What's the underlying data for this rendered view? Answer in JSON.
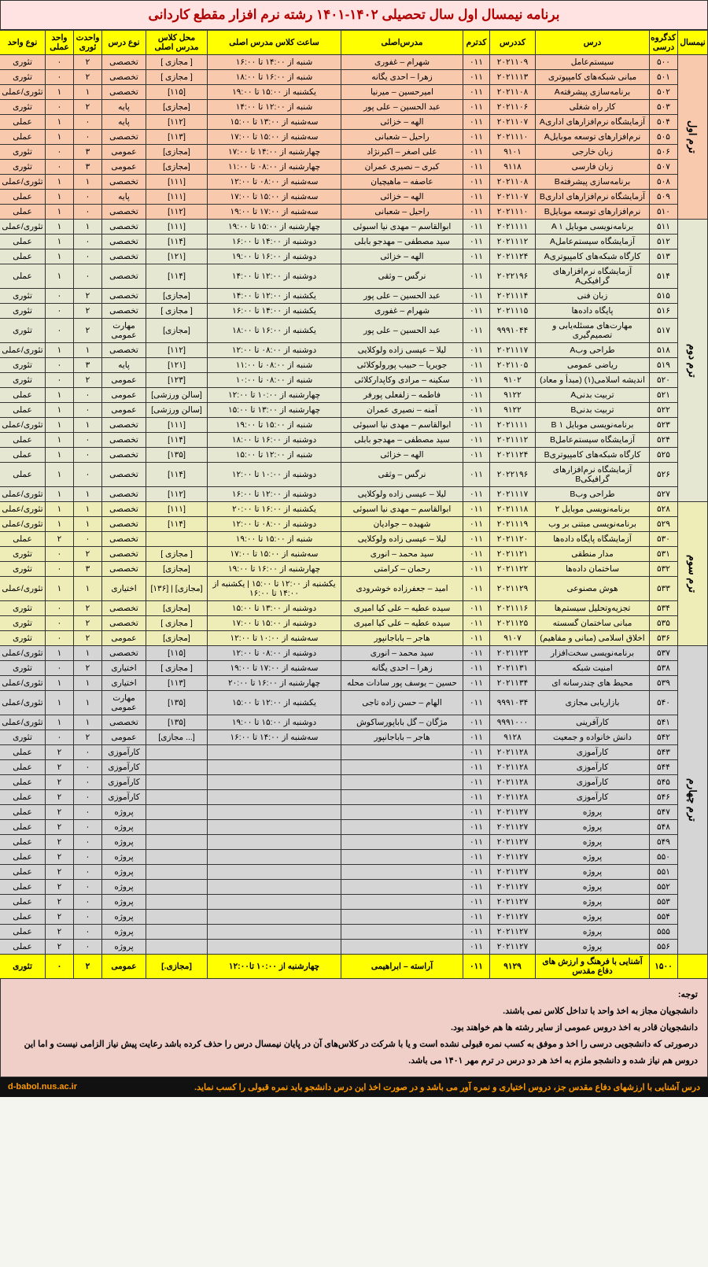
{
  "title": "برنامه نیمسال اول سال تحصیلی ۱۴۰۲-۱۴۰۱  رشته نرم افزار  مقطع کاردانی",
  "headers": {
    "term": "نیمسال",
    "group": "کدگروه درسی",
    "course": "درس",
    "code": "کددرس",
    "codetrm": "کدترم",
    "teacher": "مدرس‌اصلی",
    "time": "ساعت کلاس مدرس اصلی",
    "room": "محل کلاس مدرس اصلی",
    "type": "نوع درس",
    "theory": "واحدت ئوری",
    "practical": "واحد عملی",
    "unitType": "نوع واحد"
  },
  "terms": [
    {
      "label": "ترم اول",
      "class": "term1",
      "rows": [
        {
          "g": "۵۰۰",
          "c": "سیستم‌عامل",
          "cd": "۲۰۲۱۱۰۹",
          "ct": "۰۱۱",
          "t": "شهرام – غفوری",
          "tm": "شنبه از ۱۴:۰۰ تا ۱۶:۰۰",
          "rm": "[ مجازی ]",
          "tp": "تخصصی",
          "th": "۲",
          "pr": "۰",
          "ut": "تئوری"
        },
        {
          "g": "۵۰۱",
          "c": "مبانی شبکه‌های کامپیوتری",
          "cd": "۲۰۲۱۱۱۳",
          "ct": "۰۱۱",
          "t": "زهرا – احدی یگانه",
          "tm": "شنبه از ۱۶:۰۰ تا ۱۸:۰۰",
          "rm": "[ مجازی ]",
          "tp": "تخصصی",
          "th": "۲",
          "pr": "۰",
          "ut": "تئوری"
        },
        {
          "g": "۵۰۲",
          "c": "برنامه‌سازی پیشرفتهA",
          "cd": "۲۰۲۱۱۰۸",
          "ct": "۰۱۱",
          "t": "امیرحسین – میرنیا",
          "tm": "یکشنبه از ۱۵:۰۰ تا ۱۹:۰۰",
          "rm": "[۱۱۵]",
          "tp": "تخصصی",
          "th": "۱",
          "pr": "۱",
          "ut": "تئوری/عملی"
        },
        {
          "g": "۵۰۳",
          "c": "کار راه شغلی",
          "cd": "۲۰۲۱۱۰۶",
          "ct": "۰۱۱",
          "t": "عبد الحسین – علی پور",
          "tm": "شنبه از ۱۲:۰۰ تا ۱۴:۰۰",
          "rm": "[مجازی]",
          "tp": "پایه",
          "th": "۲",
          "pr": "۰",
          "ut": "تئوری"
        },
        {
          "g": "۵۰۴",
          "c": "آزمایشگاه نرم‌افزارهای اداریA",
          "cd": "۲۰۲۱۱۰۷",
          "ct": "۰۱۱",
          "t": "الهه – خزائی",
          "tm": "سه‌شنبه از ۱۳:۰۰ تا ۱۵:۰۰",
          "rm": "[۱۱۲]",
          "tp": "پایه",
          "th": "۰",
          "pr": "۱",
          "ut": "عملی"
        },
        {
          "g": "۵۰۵",
          "c": "نرم‌افزارهای توسعه موبایلA",
          "cd": "۲۰۲۱۱۱۰",
          "ct": "۰۱۱",
          "t": "راحیل – شعبانی",
          "tm": "سه‌شنبه از ۱۵:۰۰ تا ۱۷:۰۰",
          "rm": "[۱۱۳]",
          "tp": "تخصصی",
          "th": "۰",
          "pr": "۱",
          "ut": "عملی"
        },
        {
          "g": "۵۰۶",
          "c": "زبان خارجی",
          "cd": "۹۱۰۱",
          "ct": "۰۱۱",
          "t": "علی اصغر – اکبرنژاد",
          "tm": "چهارشنبه از ۱۴:۰۰ تا ۱۷:۰۰",
          "rm": "[مجازی]",
          "tp": "عمومی",
          "th": "۳",
          "pr": "۰",
          "ut": "تئوری"
        },
        {
          "g": "۵۰۷",
          "c": "زبان فارسی",
          "cd": "۹۱۱۸",
          "ct": "۰۱۱",
          "t": "کبری – نصیری عمران",
          "tm": "چهارشنبه از ۰۸:۰۰ تا ۱۱:۰۰",
          "rm": "[مجازی]",
          "tp": "عمومی",
          "th": "۳",
          "pr": "۰",
          "ut": "تئوری"
        },
        {
          "g": "۵۰۸",
          "c": "برنامه‌سازی پیشرفتهB",
          "cd": "۲۰۲۱۱۰۸",
          "ct": "۰۱۱",
          "t": "عاصفه – ماهیچیان",
          "tm": "سه‌شنبه از ۰۸:۰۰ تا ۱۲:۰۰",
          "rm": "[۱۱۱]",
          "tp": "تخصصی",
          "th": "۱",
          "pr": "۱",
          "ut": "تئوری/عملی"
        },
        {
          "g": "۵۰۹",
          "c": "آزمایشگاه نرم‌افزارهای اداریB",
          "cd": "۲۰۲۱۱۰۷",
          "ct": "۰۱۱",
          "t": "الهه – خزائی",
          "tm": "سه‌شنبه از ۱۵:۰۰ تا ۱۷:۰۰",
          "rm": "[۱۱۱]",
          "tp": "پایه",
          "th": "۰",
          "pr": "۱",
          "ut": "عملی"
        },
        {
          "g": "۵۱۰",
          "c": "نرم‌افزارهای توسعه موبایلB",
          "cd": "۲۰۲۱۱۱۰",
          "ct": "۰۱۱",
          "t": "راحیل – شعبانی",
          "tm": "سه‌شنبه از ۱۷:۰۰ تا ۱۹:۰۰",
          "rm": "[۱۱۲]",
          "tp": "تخصصی",
          "th": "۰",
          "pr": "۱",
          "ut": "عملی"
        }
      ]
    },
    {
      "label": "ترم دوم",
      "class": "term2",
      "rows": [
        {
          "g": "۵۱۱",
          "c": "برنامه‌نویسی موبایل A ۱",
          "cd": "۲۰۲۱۱۱۱",
          "ct": "۰۱۱",
          "t": "ابوالقاسم – مهدی نیا اسبوئی",
          "tm": "چهارشنبه از ۱۵:۰۰ تا ۱۹:۰۰",
          "rm": "[۱۱۱]",
          "tp": "تخصصی",
          "th": "۱",
          "pr": "۱",
          "ut": "تئوری/عملی"
        },
        {
          "g": "۵۱۲",
          "c": "آزمایشگاه سیستم‌عاملA",
          "cd": "۲۰۲۱۱۱۲",
          "ct": "۰۱۱",
          "t": "سید مصطفی – مهدجو بابلی",
          "tm": "دوشنبه از ۱۴:۰۰ تا ۱۶:۰۰",
          "rm": "[۱۱۴]",
          "tp": "تخصصی",
          "th": "۰",
          "pr": "۱",
          "ut": "عملی"
        },
        {
          "g": "۵۱۳",
          "c": "کارگاه شبکه‌های کامپیوتریA",
          "cd": "۲۰۲۱۱۲۴",
          "ct": "۰۱۱",
          "t": "الهه – خزائی",
          "tm": "دوشنبه از ۱۶:۰۰ تا ۱۹:۰۰",
          "rm": "[۱۲۱]",
          "tp": "تخصصی",
          "th": "۰",
          "pr": "۱",
          "ut": "عملی"
        },
        {
          "g": "۵۱۴",
          "c": "آزمایشگاه نرم‌افزارهای گرافیکیA",
          "cd": "۲۰۲۲۱۹۶",
          "ct": "۰۱۱",
          "t": "نرگس – وثقی",
          "tm": "دوشنبه از ۱۲:۰۰ تا ۱۴:۰۰",
          "rm": "[۱۱۴]",
          "tp": "تخصصی",
          "th": "۰",
          "pr": "۱",
          "ut": "عملی"
        },
        {
          "g": "۵۱۵",
          "c": "زبان فنی",
          "cd": "۲۰۲۱۱۱۴",
          "ct": "۰۱۱",
          "t": "عبد الحسین – علی پور",
          "tm": "یکشنبه از ۱۲:۰۰ تا ۱۴:۰۰",
          "rm": "[مجازی]",
          "tp": "تخصصی",
          "th": "۲",
          "pr": "۰",
          "ut": "تئوری"
        },
        {
          "g": "۵۱۶",
          "c": "پایگاه داده‌ها",
          "cd": "۲۰۲۱۱۱۵",
          "ct": "۰۱۱",
          "t": "شهرام – غفوری",
          "tm": "یکشنبه از ۱۴:۰۰ تا ۱۶:۰۰",
          "rm": "[  مجازی ]",
          "tp": "تخصصی",
          "th": "۲",
          "pr": "۰",
          "ut": "تئوری"
        },
        {
          "g": "۵۱۷",
          "c": "مهارت‌های مسئله‌یابی و تصمیم‌گیری",
          "cd": "۹۹۹۱۰۴۴",
          "ct": "۰۱۱",
          "t": "عبد الحسین – علی پور",
          "tm": "یکشنبه از ۱۶:۰۰ تا ۱۸:۰۰",
          "rm": "[مجازی]",
          "tp": "مهارت عمومی",
          "th": "۲",
          "pr": "۰",
          "ut": "تئوری"
        },
        {
          "g": "۵۱۸",
          "c": "طراحی وبA",
          "cd": "۲۰۲۱۱۱۷",
          "ct": "۰۱۱",
          "t": "لیلا – عیسی زاده ولوکلایی",
          "tm": "دوشنبه از ۰۸:۰۰ تا ۱۲:۰۰",
          "rm": "[۱۱۲]",
          "tp": "تخصصی",
          "th": "۱",
          "pr": "۱",
          "ut": "تئوری/عملی"
        },
        {
          "g": "۵۱۹",
          "c": "ریاضی عمومی",
          "cd": "۲۰۲۱۱۰۵",
          "ct": "۰۱۱",
          "t": "جویریا – حبیب پورولوکلائی",
          "tm": "شنبه از ۰۸:۰۰ تا ۱۱:۰۰",
          "rm": "[۱۲۱]",
          "tp": "پایه",
          "th": "۳",
          "pr": "۰",
          "ut": "تئوری"
        },
        {
          "g": "۵۲۰",
          "c": "اندیشه اسلامی(۱) (مبدأ و معاد)",
          "cd": "۹۱۰۲",
          "ct": "۰۱۱",
          "t": "سکینه – مرادی وکاپدارکلائی",
          "tm": "شنبه از ۰۸:۰۰ تا ۱۰:۰۰",
          "rm": "[۱۲۳]",
          "tp": "عمومی",
          "th": "۲",
          "pr": "۰",
          "ut": "تئوری"
        },
        {
          "g": "۵۲۱",
          "c": "تربیت بدنیA",
          "cd": "۹۱۲۲",
          "ct": "۰۱۱",
          "t": "فاطمه – زلفعلی پورفر",
          "tm": "چهارشنبه از ۱۰:۰۰ تا ۱۲:۰۰",
          "rm": "[سالن ورزشی]",
          "tp": "عمومی",
          "th": "۰",
          "pr": "۱",
          "ut": "عملی"
        },
        {
          "g": "۵۲۲",
          "c": "تربیت بدنیB",
          "cd": "۹۱۲۲",
          "ct": "۰۱۱",
          "t": "آمنه – نصیری عمران",
          "tm": "چهارشنبه از ۱۳:۰۰ تا ۱۵:۰۰",
          "rm": "[سالن ورزشی]",
          "tp": "عمومی",
          "th": "۰",
          "pr": "۱",
          "ut": "عملی"
        },
        {
          "g": "۵۲۳",
          "c": "برنامه‌نویسی موبایل B ۱",
          "cd": "۲۰۲۱۱۱۱",
          "ct": "۰۱۱",
          "t": "ابوالقاسم – مهدی نیا اسبوئی",
          "tm": "شنبه از ۱۵:۰۰ تا ۱۹:۰۰",
          "rm": "[۱۱۱]",
          "tp": "تخصصی",
          "th": "۱",
          "pr": "۱",
          "ut": "تئوری/عملی"
        },
        {
          "g": "۵۲۴",
          "c": "آزمایشگاه سیستم‌عاملB",
          "cd": "۲۰۲۱۱۱۲",
          "ct": "۰۱۱",
          "t": "سید مصطفی – مهدجو بابلی",
          "tm": "دوشنبه از ۱۶:۰۰ تا ۱۸:۰۰",
          "rm": "[۱۱۴]",
          "tp": "تخصصی",
          "th": "۰",
          "pr": "۱",
          "ut": "عملی"
        },
        {
          "g": "۵۲۵",
          "c": "کارگاه شبکه‌های کامپیوتریB",
          "cd": "۲۰۲۱۱۲۴",
          "ct": "۰۱۱",
          "t": "الهه – خزائی",
          "tm": "شنبه از ۱۲:۰۰ تا ۱۵:۰۰",
          "rm": "[۱۳۵]",
          "tp": "تخصصی",
          "th": "۰",
          "pr": "۱",
          "ut": "عملی"
        },
        {
          "g": "۵۲۶",
          "c": "آزمایشگاه نرم‌افزارهای گرافیکیB",
          "cd": "۲۰۲۲۱۹۶",
          "ct": "۰۱۱",
          "t": "نرگس – وثقی",
          "tm": "دوشنبه از ۱۰:۰۰ تا ۱۲:۰۰",
          "rm": "[۱۱۴]",
          "tp": "تخصصی",
          "th": "۰",
          "pr": "۱",
          "ut": "عملی"
        },
        {
          "g": "۵۲۷",
          "c": "طراحی وبB",
          "cd": "۲۰۲۱۱۱۷",
          "ct": "۰۱۱",
          "t": "لیلا – عیسی زاده ولوکلایی",
          "tm": "دوشنبه از ۱۲:۰۰ تا ۱۶:۰۰",
          "rm": "[۱۱۲]",
          "tp": "تخصصی",
          "th": "۱",
          "pr": "۱",
          "ut": "تئوری/عملی"
        }
      ]
    },
    {
      "label": "ترم سوم",
      "class": "term3",
      "rows": [
        {
          "g": "۵۲۸",
          "c": "برنامه‌نویسی موبایل ۲",
          "cd": "۲۰۲۱۱۱۸",
          "ct": "۰۱۱",
          "t": "ابوالقاسم – مهدی نیا اسبوئی",
          "tm": "یکشنبه از ۱۶:۰۰ تا ۲۰:۰۰",
          "rm": "[۱۱۱]",
          "tp": "تخصصی",
          "th": "۱",
          "pr": "۱",
          "ut": "تئوری/عملی"
        },
        {
          "g": "۵۲۹",
          "c": "برنامه‌نویسی مبتنی بر وب",
          "cd": "۲۰۲۱۱۱۹",
          "ct": "۰۱۱",
          "t": "شهیده – جوادیان",
          "tm": "دوشنبه از ۰۸:۰۰ تا ۱۲:۰۰",
          "rm": "[۱۱۴]",
          "tp": "تخصصی",
          "th": "۱",
          "pr": "۱",
          "ut": "تئوری/عملی"
        },
        {
          "g": "۵۳۰",
          "c": "آزمایشگاه پایگاه داده‌ها",
          "cd": "۲۰۲۱۱۲۰",
          "ct": "۰۱۱",
          "t": "لیلا – عیسی زاده ولوکلایی",
          "tm": "شنبه از ۱۵:۰۰ تا ۱۹:۰۰",
          "rm": "",
          "tp": "تخصصی",
          "th": "۰",
          "pr": "۲",
          "ut": "عملی"
        },
        {
          "g": "۵۳۱",
          "c": "مدار منطقی",
          "cd": "۲۰۲۱۱۲۱",
          "ct": "۰۱۱",
          "t": "سید محمد – انوری",
          "tm": "سه‌شنبه از ۱۵:۰۰ تا ۱۷:۰۰",
          "rm": "[  مجازی ]",
          "tp": "تخصصی",
          "th": "۲",
          "pr": "۰",
          "ut": "تئوری"
        },
        {
          "g": "۵۳۲",
          "c": "ساختمان داده‌ها",
          "cd": "۲۰۲۱۱۲۲",
          "ct": "۰۱۱",
          "t": "رحمان – کرامتی",
          "tm": "چهارشنبه از ۱۶:۰۰ تا ۱۹:۰۰",
          "rm": "[مجازی]",
          "tp": "تخصصی",
          "th": "۳",
          "pr": "۰",
          "ut": "تئوری"
        },
        {
          "g": "۵۳۳",
          "c": "هوش مصنوعی",
          "cd": "۲۰۲۱۱۲۹",
          "ct": "۰۱۱",
          "t": "امید – جعفرزاده خوشرودی",
          "tm": "یکشنبه از ۱۲:۰۰ تا ۱۵:۰۰ | یکشنبه از ۱۴:۰۰ تا ۱۶:۰۰",
          "rm": "[مجازی] | [۱۳۶]",
          "tp": "اختیاری",
          "th": "۱",
          "pr": "۱",
          "ut": "تئوری/عملی"
        },
        {
          "g": "۵۳۴",
          "c": "تجزیه‌وتحلیل سیستم‌ها",
          "cd": "۲۰۲۱۱۱۶",
          "ct": "۰۱۱",
          "t": "سیده عطیه – علی کیا امیری",
          "tm": "دوشنبه از ۱۳:۰۰ تا ۱۵:۰۰",
          "rm": "[مجازی]",
          "tp": "تخصصی",
          "th": "۲",
          "pr": "۰",
          "ut": "تئوری"
        },
        {
          "g": "۵۳۵",
          "c": "مبانی ساختمان گسسته",
          "cd": "۲۰۲۱۱۲۵",
          "ct": "۰۱۱",
          "t": "سیده عطیه – علی کیا امیری",
          "tm": "دوشنبه از ۱۵:۰۰ تا ۱۷:۰۰",
          "rm": "[  مجازی ]",
          "tp": "تخصصی",
          "th": "۲",
          "pr": "۰",
          "ut": "تئوری"
        },
        {
          "g": "۵۳۶",
          "c": "اخلاق اسلامی (مبانی و مفاهیم)",
          "cd": "۹۱۰۷",
          "ct": "۰۱۱",
          "t": "هاجر – باباجانپور",
          "tm": "سه‌شنبه از ۱۰:۰۰ تا ۱۲:۰۰",
          "rm": "[مجازی]",
          "tp": "عمومی",
          "th": "۲",
          "pr": "۰",
          "ut": "تئوری"
        }
      ]
    },
    {
      "label": "ترم چهارم",
      "class": "term4",
      "rows": [
        {
          "g": "۵۳۷",
          "c": "برنامه‌نویسی سخت‌افزار",
          "cd": "۲۰۲۱۱۲۳",
          "ct": "۰۱۱",
          "t": "سید محمد – انوری",
          "tm": "دوشنبه از ۰۸:۰۰ تا ۱۲:۰۰",
          "rm": "[۱۱۵]",
          "tp": "تخصصی",
          "th": "۱",
          "pr": "۱",
          "ut": "تئوری/عملی"
        },
        {
          "g": "۵۳۸",
          "c": "امنیت شبکه",
          "cd": "۲۰۲۱۱۳۱",
          "ct": "۰۱۱",
          "t": "زهرا – احدی یگانه",
          "tm": "سه‌شنبه از ۱۷:۰۰ تا ۱۹:۰۰",
          "rm": "[ مجازی ]",
          "tp": "اختیاری",
          "th": "۲",
          "pr": "۰",
          "ut": "تئوری"
        },
        {
          "g": "۵۳۹",
          "c": "محیط های چندرسانه ای",
          "cd": "۲۰۲۱۱۳۴",
          "ct": "۰۱۱",
          "t": "حسین – یوسف پور سادات محله",
          "tm": "چهارشنبه از ۱۶:۰۰ تا ۲۰:۰۰",
          "rm": "[۱۱۳]",
          "tp": "اختیاری",
          "th": "۱",
          "pr": "۱",
          "ut": "تئوری/عملی"
        },
        {
          "g": "۵۴۰",
          "c": "بازاریابی مجازی",
          "cd": "۹۹۹۱۰۳۴",
          "ct": "۰۱۱",
          "t": "الهام – حسن زاده تاجی",
          "tm": "یکشنبه از ۱۲:۰۰ تا ۱۵:۰۰",
          "rm": "[۱۳۵]",
          "tp": "مهارت عمومی",
          "th": "۱",
          "pr": "۱",
          "ut": "تئوری/عملی"
        },
        {
          "g": "۵۴۱",
          "c": "کارآفرینی",
          "cd": "۹۹۹۱۰۰۰",
          "ct": "۰۱۱",
          "t": "مژگان – گل باباپورساکوش",
          "tm": "دوشنبه از ۱۵:۰۰ تا ۱۹:۰۰",
          "rm": "[۱۳۵]",
          "tp": "تخصصی",
          "th": "۱",
          "pr": "۱",
          "ut": "تئوری/عملی"
        },
        {
          "g": "۵۴۲",
          "c": "دانش خانواده و جمعیت",
          "cd": "۹۱۲۸",
          "ct": "۰۱۱",
          "t": "هاجر – باباجانپور",
          "tm": "سه‌شنبه از ۱۴:۰۰ تا ۱۶:۰۰",
          "rm": "[... مجازی]",
          "tp": "عمومی",
          "th": "۲",
          "pr": "۰",
          "ut": "تئوری"
        },
        {
          "g": "۵۴۳",
          "c": "کارآموزی",
          "cd": "۲۰۲۱۱۲۸",
          "ct": "۰۱۱",
          "t": "",
          "tm": "",
          "rm": "",
          "tp": "کارآموزی",
          "th": "۰",
          "pr": "۲",
          "ut": "عملی"
        },
        {
          "g": "۵۴۴",
          "c": "کارآموزی",
          "cd": "۲۰۲۱۱۲۸",
          "ct": "۰۱۱",
          "t": "",
          "tm": "",
          "rm": "",
          "tp": "کارآموزی",
          "th": "۰",
          "pr": "۲",
          "ut": "عملی"
        },
        {
          "g": "۵۴۵",
          "c": "کارآموزی",
          "cd": "۲۰۲۱۱۲۸",
          "ct": "۰۱۱",
          "t": "",
          "tm": "",
          "rm": "",
          "tp": "کارآموزی",
          "th": "۰",
          "pr": "۲",
          "ut": "عملی"
        },
        {
          "g": "۵۴۶",
          "c": "کارآموزی",
          "cd": "۲۰۲۱۱۲۸",
          "ct": "۰۱۱",
          "t": "",
          "tm": "",
          "rm": "",
          "tp": "کارآموزی",
          "th": "۰",
          "pr": "۲",
          "ut": "عملی"
        },
        {
          "g": "۵۴۷",
          "c": "پروژه",
          "cd": "۲۰۲۱۱۲۷",
          "ct": "۰۱۱",
          "t": "",
          "tm": "",
          "rm": "",
          "tp": "پروژه",
          "th": "۰",
          "pr": "۲",
          "ut": "عملی"
        },
        {
          "g": "۵۴۸",
          "c": "پروژه",
          "cd": "۲۰۲۱۱۲۷",
          "ct": "۰۱۱",
          "t": "",
          "tm": "",
          "rm": "",
          "tp": "پروژه",
          "th": "۰",
          "pr": "۲",
          "ut": "عملی"
        },
        {
          "g": "۵۴۹",
          "c": "پروژه",
          "cd": "۲۰۲۱۱۲۷",
          "ct": "۰۱۱",
          "t": "",
          "tm": "",
          "rm": "",
          "tp": "پروژه",
          "th": "۰",
          "pr": "۲",
          "ut": "عملی"
        },
        {
          "g": "۵۵۰",
          "c": "پروژه",
          "cd": "۲۰۲۱۱۲۷",
          "ct": "۰۱۱",
          "t": "",
          "tm": "",
          "rm": "",
          "tp": "پروژه",
          "th": "۰",
          "pr": "۲",
          "ut": "عملی"
        },
        {
          "g": "۵۵۱",
          "c": "پروژه",
          "cd": "۲۰۲۱۱۲۷",
          "ct": "۰۱۱",
          "t": "",
          "tm": "",
          "rm": "",
          "tp": "پروژه",
          "th": "۰",
          "pr": "۲",
          "ut": "عملی"
        },
        {
          "g": "۵۵۲",
          "c": "پروژه",
          "cd": "۲۰۲۱۱۲۷",
          "ct": "۰۱۱",
          "t": "",
          "tm": "",
          "rm": "",
          "tp": "پروژه",
          "th": "۰",
          "pr": "۲",
          "ut": "عملی"
        },
        {
          "g": "۵۵۳",
          "c": "پروژه",
          "cd": "۲۰۲۱۱۲۷",
          "ct": "۰۱۱",
          "t": "",
          "tm": "",
          "rm": "",
          "tp": "پروژه",
          "th": "۰",
          "pr": "۲",
          "ut": "عملی"
        },
        {
          "g": "۵۵۴",
          "c": "پروژه",
          "cd": "۲۰۲۱۱۲۷",
          "ct": "۰۱۱",
          "t": "",
          "tm": "",
          "rm": "",
          "tp": "پروژه",
          "th": "۰",
          "pr": "۲",
          "ut": "عملی"
        },
        {
          "g": "۵۵۵",
          "c": "پروژه",
          "cd": "۲۰۲۱۱۲۷",
          "ct": "۰۱۱",
          "t": "",
          "tm": "",
          "rm": "",
          "tp": "پروژه",
          "th": "۰",
          "pr": "۲",
          "ut": "عملی"
        },
        {
          "g": "۵۵۶",
          "c": "پروژه",
          "cd": "۲۰۲۱۱۲۷",
          "ct": "۰۱۱",
          "t": "",
          "tm": "",
          "rm": "",
          "tp": "پروژه",
          "th": "۰",
          "pr": "۲",
          "ut": "عملی"
        }
      ]
    }
  ],
  "final": {
    "g": "۱۵۰۰",
    "c": "آشنایی با فرهنگ و ارزش های دفاع مقدس",
    "cd": "۹۱۲۹",
    "ct": "۰۱۱",
    "t": "آراسته – ابراهیمی",
    "tm": "چهارشنبه از ۱۰:۰۰ تا۱۲:۰۰",
    "rm": "[مجازی.]",
    "tp": "عمومی",
    "th": "۲",
    "pr": "۰",
    "ut": "تئوری"
  },
  "notes_title": "توجه:",
  "notes": [
    "دانشجویان مجاز به اخذ واحد با تداخل کلاس نمی باشند.",
    "دانشجویان قادر به اخذ دروس عمومی از سایر رشته ها هم خواهند بود.",
    "درصورتی که دانشجویی درسی را اخذ و موفق به کسب نمره قبولی نشده است و یا با شرکت در کلاس‌های آن در پایان نیمسال درس را حذف کرده باشد رعایت پیش نیاز الزامی نیست و اما این دروس هم نیاز شده و دانشجو ملزم به اخذ هر دو درس در ترم مهر ۱۴۰۱ می باشد."
  ],
  "footer_text": "درس آشنایی با ارزشهای دفاع مقدس جز، دروس اختیاری و نمره آور می باشد و در صورت اخذ این درس دانشجو باید نمره قبولی را کسب نماید.",
  "footer_url": "d-babol.nus.ac.ir"
}
